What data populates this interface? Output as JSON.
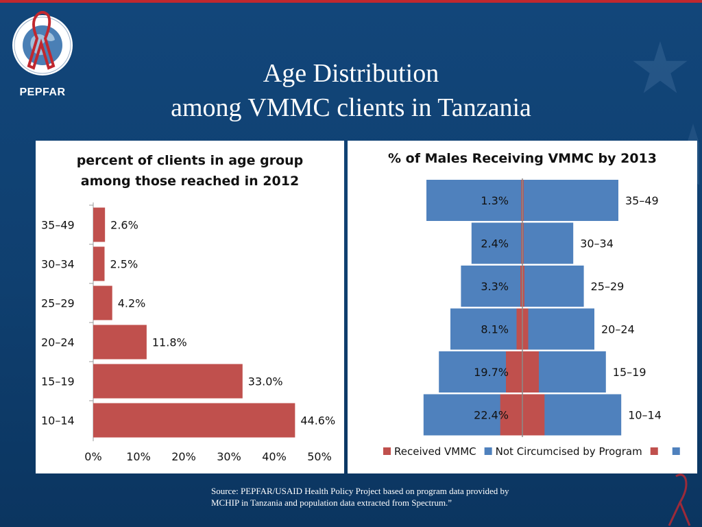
{
  "slide": {
    "brand": "PEPFAR",
    "title_line1": "Age Distribution",
    "title_line2": "among VMMC clients in Tanzania",
    "source_line1": "Source: PEPFAR/USAID Health Policy Project  based on program data provided by",
    "source_line2": "MCHIP in Tanzania and population data extracted from Spectrum.”",
    "colors": {
      "background": "#12467a",
      "accent_red": "#c0282f"
    },
    "icons": [
      "pepfar-seal-icon",
      "red-ribbon-icon",
      "star-icon"
    ]
  },
  "chart_data": [
    {
      "type": "bar",
      "orientation": "horizontal",
      "title_line1": "percent of clients in age group",
      "title_line2": "among those reached in 2012",
      "categories": [
        "35–49",
        "30–34",
        "25–29",
        "20–24",
        "15–19",
        "10–14"
      ],
      "values": [
        2.6,
        2.5,
        4.2,
        11.8,
        33.0,
        44.6
      ],
      "value_labels": [
        "2.6%",
        "2.5%",
        "4.2%",
        "11.8%",
        "33.0%",
        "44.6%"
      ],
      "xlim": [
        0,
        50
      ],
      "x_ticks": [
        "0%",
        "10%",
        "20%",
        "30%",
        "40%",
        "50%"
      ],
      "x_tick_values": [
        0,
        10,
        20,
        30,
        40,
        50
      ],
      "grid": false,
      "colors": {
        "bar": "#c0504d"
      }
    },
    {
      "type": "bar",
      "orientation": "horizontal",
      "layout": "population-pyramid",
      "title": "% of Males Receiving VMMC by 2013",
      "categories": [
        "35–49",
        "30–34",
        "25–29",
        "20–24",
        "15–19",
        "10–14"
      ],
      "series": [
        {
          "name": "Received VMMC",
          "values": [
            1.3,
            2.4,
            3.3,
            8.1,
            19.7,
            22.4
          ],
          "color": "#c0504d"
        },
        {
          "name": "Not Circumcised by Program",
          "values": [
            98.7,
            97.6,
            96.7,
            91.9,
            80.3,
            77.6
          ],
          "color": "#4f81bd"
        }
      ],
      "value_labels": [
        "1.3%",
        "2.4%",
        "3.3%",
        "8.1%",
        "19.7%",
        "22.4%"
      ],
      "relative_population": [
        1.0,
        0.53,
        0.64,
        0.75,
        0.87,
        1.03
      ],
      "legend": {
        "position": "bottom",
        "items": [
          {
            "label": "Received VMMC",
            "color": "#c0504d"
          },
          {
            "label": "Not Circumcised by Program",
            "color": "#4f81bd"
          },
          {
            "label": "",
            "color": "#c0504d"
          },
          {
            "label": "",
            "color": "#4f81bd"
          }
        ]
      },
      "center_line": true
    }
  ]
}
